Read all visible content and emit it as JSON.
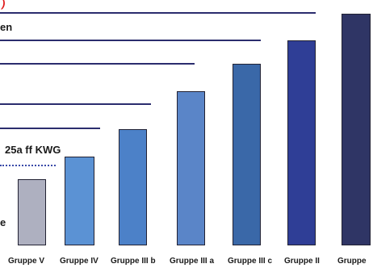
{
  "header": {
    "red_fragment": ")",
    "line_label": "en"
  },
  "annotation": {
    "kwg_label": "25a ff KWG"
  },
  "side_fragment": "e",
  "chart_data": {
    "type": "bar",
    "categories": [
      "Gruppe V",
      "Gruppe IV",
      "Gruppe III b",
      "Gruppe III a",
      "Gruppe III c",
      "Gruppe II",
      "Gruppe"
    ],
    "values": [
      1,
      1.34,
      1.75,
      2.33,
      2.74,
      3.1,
      3.5
    ],
    "colors": [
      "#aeb0c0",
      "#5b92d4",
      "#4c81c8",
      "#5a85c8",
      "#3a68a8",
      "#2f3e96",
      "#2f3565"
    ]
  }
}
